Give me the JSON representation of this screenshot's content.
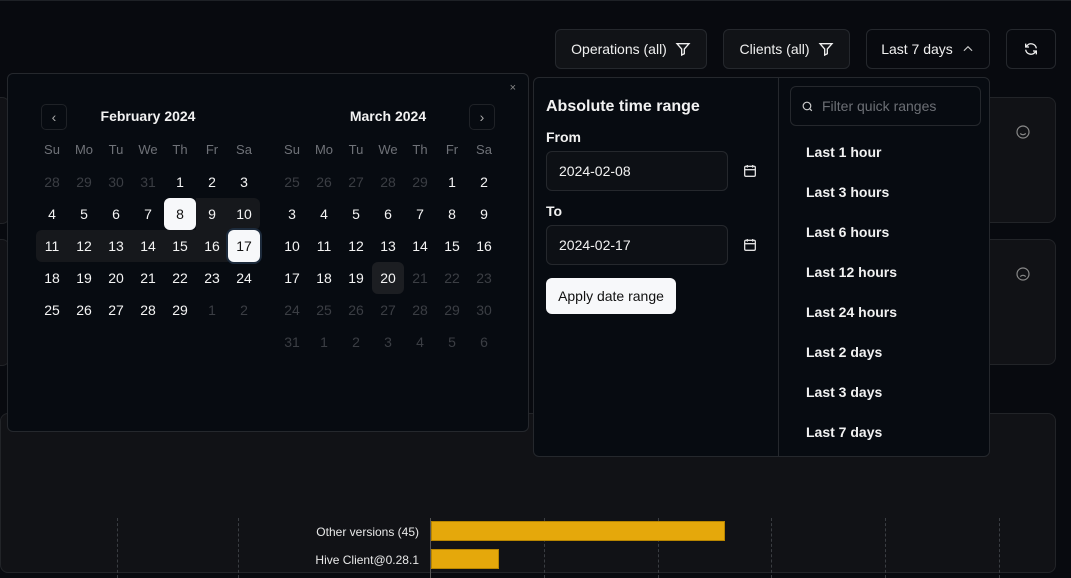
{
  "toolbar": {
    "operations": "Operations (all)",
    "clients": "Clients (all)",
    "range": "Last 7 days",
    "filter_icon": "filter-icon",
    "refresh_icon": "refresh-icon"
  },
  "calendar": {
    "close": "×",
    "weekdays": [
      "Su",
      "Mo",
      "Tu",
      "We",
      "Th",
      "Fr",
      "Sa"
    ],
    "months": [
      {
        "title": "February 2024",
        "days": [
          [
            "28",
            "out"
          ],
          [
            "29",
            "out"
          ],
          [
            "30",
            "out"
          ],
          [
            "31",
            "out"
          ],
          [
            "1",
            ""
          ],
          [
            "2",
            ""
          ],
          [
            "3",
            ""
          ],
          [
            "4",
            ""
          ],
          [
            "5",
            ""
          ],
          [
            "6",
            ""
          ],
          [
            "7",
            ""
          ],
          [
            "8",
            "sel"
          ],
          [
            "9",
            "range"
          ],
          [
            "10",
            "range re"
          ],
          [
            "11",
            "range rs"
          ],
          [
            "12",
            "range"
          ],
          [
            "13",
            "range"
          ],
          [
            "14",
            "range"
          ],
          [
            "15",
            "range"
          ],
          [
            "16",
            "range"
          ],
          [
            "17",
            "sel end"
          ],
          [
            "18",
            ""
          ],
          [
            "19",
            ""
          ],
          [
            "20",
            ""
          ],
          [
            "21",
            ""
          ],
          [
            "22",
            ""
          ],
          [
            "23",
            ""
          ],
          [
            "24",
            ""
          ],
          [
            "25",
            ""
          ],
          [
            "26",
            ""
          ],
          [
            "27",
            ""
          ],
          [
            "28",
            ""
          ],
          [
            "29",
            ""
          ],
          [
            "1",
            "out"
          ],
          [
            "2",
            "out"
          ]
        ]
      },
      {
        "title": "March 2024",
        "days": [
          [
            "25",
            "out"
          ],
          [
            "26",
            "out"
          ],
          [
            "27",
            "out"
          ],
          [
            "28",
            "out"
          ],
          [
            "29",
            "out"
          ],
          [
            "1",
            ""
          ],
          [
            "2",
            ""
          ],
          [
            "3",
            ""
          ],
          [
            "4",
            ""
          ],
          [
            "5",
            ""
          ],
          [
            "6",
            ""
          ],
          [
            "7",
            ""
          ],
          [
            "8",
            ""
          ],
          [
            "9",
            ""
          ],
          [
            "10",
            ""
          ],
          [
            "11",
            ""
          ],
          [
            "12",
            ""
          ],
          [
            "13",
            ""
          ],
          [
            "14",
            ""
          ],
          [
            "15",
            ""
          ],
          [
            "16",
            ""
          ],
          [
            "17",
            ""
          ],
          [
            "18",
            ""
          ],
          [
            "19",
            ""
          ],
          [
            "20",
            "today"
          ],
          [
            "21",
            "out"
          ],
          [
            "22",
            "out"
          ],
          [
            "23",
            "out"
          ],
          [
            "24",
            "out"
          ],
          [
            "25",
            "out"
          ],
          [
            "26",
            "out"
          ],
          [
            "27",
            "out"
          ],
          [
            "28",
            "out"
          ],
          [
            "29",
            "out"
          ],
          [
            "30",
            "out"
          ],
          [
            "31",
            "out"
          ],
          [
            "1",
            "out"
          ],
          [
            "2",
            "out"
          ],
          [
            "3",
            "out"
          ],
          [
            "4",
            "out"
          ],
          [
            "5",
            "out"
          ],
          [
            "6",
            "out"
          ]
        ]
      }
    ]
  },
  "time_range": {
    "title": "Absolute time range",
    "from_label": "From",
    "from_value": "2024-02-08",
    "to_label": "To",
    "to_value": "2024-02-17",
    "apply": "Apply date range",
    "filter_placeholder": "Filter quick ranges",
    "quick": [
      "Last 1 hour",
      "Last 3 hours",
      "Last 6 hours",
      "Last 12 hours",
      "Last 24 hours",
      "Last 2 days",
      "Last 3 days",
      "Last 7 days"
    ]
  },
  "chart_data": {
    "type": "bar",
    "orientation": "horizontal",
    "categories": [
      "Other versions (45)",
      "Hive Client@0.28.1"
    ],
    "values": [
      2.6,
      0.6
    ],
    "grid": "dashed vertical",
    "color": "#e5a80b"
  }
}
